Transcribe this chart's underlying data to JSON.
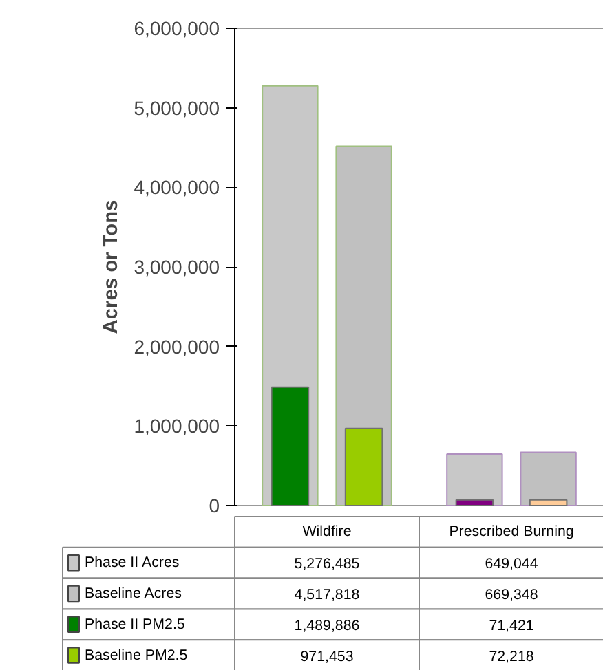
{
  "chart_data": {
    "type": "bar",
    "ylabel": "Acres or Tons",
    "categories": [
      "Wildfire",
      "Prescribed Burning"
    ],
    "series": [
      {
        "name": "Phase II Acres",
        "color": "#c8c8c8",
        "values": [
          5276485,
          649044
        ],
        "value_labels": [
          "5,276,485",
          "649,044"
        ]
      },
      {
        "name": "Baseline Acres",
        "color": "#c0c0c0",
        "values": [
          4517818,
          669348
        ],
        "value_labels": [
          "4,517,818",
          "669,348"
        ]
      },
      {
        "name": "Phase II PM2.5",
        "color": "#008000",
        "colors": [
          "#008000",
          "#800080"
        ],
        "values": [
          1489886,
          71421
        ],
        "value_labels": [
          "1,489,886",
          "71,421"
        ]
      },
      {
        "name": "Baseline PM2.5",
        "color": "#99cc00",
        "colors": [
          "#99cc00",
          "#ffcc99"
        ],
        "values": [
          971453,
          72218
        ],
        "value_labels": [
          "971,453",
          "72,218"
        ]
      }
    ],
    "ylim": [
      0,
      6000000
    ],
    "yticks": [
      {
        "value": 0,
        "label": "0"
      },
      {
        "value": 1000000,
        "label": "1,000,000"
      },
      {
        "value": 2000000,
        "label": "2,000,000"
      },
      {
        "value": 3000000,
        "label": "3,000,000"
      },
      {
        "value": 4000000,
        "label": "4,000,000"
      },
      {
        "value": 5000000,
        "label": "5,000,000"
      },
      {
        "value": 6000000,
        "label": "6,000,000"
      }
    ],
    "legend": "bottom",
    "grid": false
  }
}
